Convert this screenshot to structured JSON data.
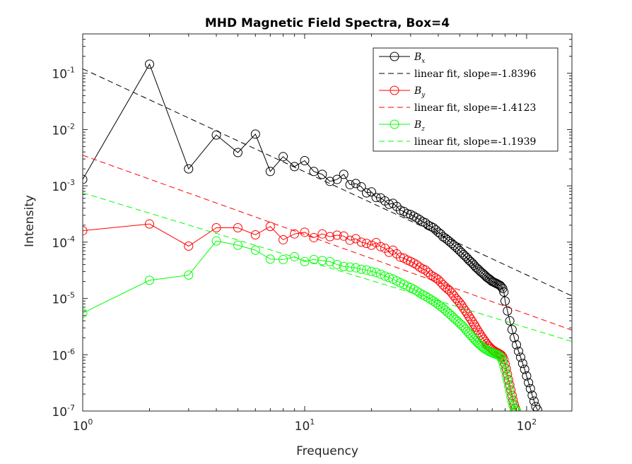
{
  "chart_data": {
    "type": "line",
    "title": "MHD Magnetic Field Spectra, Box=4",
    "xlabel": "Frequency",
    "ylabel": "Intensity",
    "xscale": "log",
    "yscale": "log",
    "xlim": [
      1,
      160
    ],
    "ylim": [
      1e-07,
      0.5
    ],
    "x_ticks": [
      {
        "base": "10",
        "exp": "0"
      },
      {
        "base": "10",
        "exp": "1"
      },
      {
        "base": "10",
        "exp": "2"
      }
    ],
    "y_ticks": [
      {
        "base": "10",
        "exp": "-7"
      },
      {
        "base": "10",
        "exp": "-6"
      },
      {
        "base": "10",
        "exp": "-5"
      },
      {
        "base": "10",
        "exp": "-4"
      },
      {
        "base": "10",
        "exp": "-3"
      },
      {
        "base": "10",
        "exp": "-2"
      },
      {
        "base": "10",
        "exp": "-1"
      }
    ],
    "grid": false,
    "legend_position": "top-right",
    "series": [
      {
        "name": "Bx",
        "legend_main": "B",
        "legend_sub": "x",
        "color": "#000000",
        "marker": "circle",
        "x": [
          1,
          2,
          3,
          4,
          5,
          6,
          7,
          8,
          9,
          10,
          11,
          12,
          13,
          14,
          15,
          16,
          17,
          18,
          19,
          20,
          21,
          22,
          23,
          24,
          25,
          26,
          27,
          28,
          29,
          30,
          31,
          32,
          33,
          34,
          35,
          36,
          37,
          38,
          39,
          40,
          41,
          42,
          43,
          44,
          45,
          46,
          47,
          48,
          49,
          50,
          51,
          52,
          53,
          54,
          55,
          56,
          57,
          58,
          59,
          60,
          61,
          62,
          63,
          64,
          65,
          66,
          67,
          68,
          69,
          70,
          71,
          72,
          73,
          74,
          75,
          76,
          77,
          78,
          79,
          80,
          82,
          84,
          86,
          88,
          90,
          92,
          94,
          96,
          98,
          100,
          102,
          104,
          106,
          108,
          110,
          112
        ],
        "y": [
          0.0013,
          0.145,
          0.002,
          0.008,
          0.0039,
          0.0083,
          0.0018,
          0.0033,
          0.0022,
          0.0028,
          0.0018,
          0.0016,
          0.0012,
          0.0013,
          0.0016,
          0.00105,
          0.0011,
          0.00096,
          0.00075,
          0.00078,
          0.00062,
          0.00061,
          0.00054,
          0.00047,
          0.00049,
          0.00043,
          0.00037,
          0.00035,
          0.00032,
          0.00031,
          0.00029,
          0.00027,
          0.00025,
          0.00023,
          0.00022,
          0.0002,
          0.00019,
          0.00018,
          0.000165,
          0.00015,
          0.00014,
          0.000125,
          0.000118,
          0.00011,
          0.000102,
          9.5e-05,
          8.8e-05,
          8.2e-05,
          7.6e-05,
          7e-05,
          6.5e-05,
          6e-05,
          5.6e-05,
          5.2e-05,
          4.8e-05,
          4.5e-05,
          4.2e-05,
          3.9e-05,
          3.6e-05,
          3.4e-05,
          3.2e-05,
          3e-05,
          2.85e-05,
          2.7e-05,
          2.55e-05,
          2.4e-05,
          2.3e-05,
          2.2e-05,
          2.1e-05,
          2e-05,
          1.95e-05,
          1.9e-05,
          1.85e-05,
          1.8e-05,
          1.75e-05,
          1.7e-05,
          1.6e-05,
          1.5e-05,
          1.3e-05,
          9e-06,
          6e-06,
          4e-06,
          2.8e-06,
          2e-06,
          1.5e-06,
          1.15e-06,
          9e-07,
          7e-07,
          5.5e-07,
          4.2e-07,
          3.2e-07,
          2.5e-07,
          1.9e-07,
          1.5e-07,
          1.2e-07,
          1.05e-07
        ]
      },
      {
        "name": "linear fit, slope=-1.8396",
        "legend_main": "linear fit, slope=-1.8396",
        "color": "#000000",
        "dash": true,
        "x": [
          1,
          160
        ],
        "y": [
          0.12,
          1.11e-05
        ]
      },
      {
        "name": "By",
        "legend_main": "B",
        "legend_sub": "y",
        "color": "#ff0000",
        "marker": "circle",
        "x": [
          1,
          2,
          3,
          4,
          5,
          6,
          7,
          8,
          9,
          10,
          11,
          12,
          13,
          14,
          15,
          16,
          17,
          18,
          19,
          20,
          21,
          22,
          23,
          24,
          25,
          26,
          27,
          28,
          29,
          30,
          31,
          32,
          33,
          34,
          35,
          36,
          37,
          38,
          39,
          40,
          41,
          42,
          43,
          44,
          45,
          46,
          47,
          48,
          49,
          50,
          51,
          52,
          53,
          54,
          55,
          56,
          57,
          58,
          59,
          60,
          61,
          62,
          63,
          64,
          65,
          66,
          67,
          68,
          69,
          70,
          71,
          72,
          73,
          74,
          75,
          76,
          77,
          78,
          79,
          80,
          81,
          82,
          83,
          84,
          85,
          86,
          87,
          88,
          89,
          90
        ],
        "y": [
          0.00016,
          0.00021,
          8.5e-05,
          0.00018,
          0.00018,
          0.000135,
          0.00019,
          0.00011,
          0.00014,
          0.00015,
          0.00012,
          0.00014,
          0.000125,
          0.000133,
          0.000128,
          0.000108,
          0.000115,
          0.0001,
          9.5e-05,
          8.8e-05,
          9.8e-05,
          8.3e-05,
          7.8e-05,
          6.6e-05,
          7.2e-05,
          6.2e-05,
          5.4e-05,
          5.2e-05,
          4.8e-05,
          4.55e-05,
          4.25e-05,
          3.95e-05,
          3.6e-05,
          3.35e-05,
          3.2e-05,
          2.9e-05,
          2.6e-05,
          2.45e-05,
          2.3e-05,
          2.15e-05,
          1.95e-05,
          1.75e-05,
          1.6e-05,
          1.48e-05,
          1.38e-05,
          1.25e-05,
          1.12e-05,
          1e-05,
          9.2e-06,
          8.3e-06,
          7.5e-06,
          6.7e-06,
          6e-06,
          5.4e-06,
          4.8e-06,
          4.3e-06,
          3.85e-06,
          3.45e-06,
          3.1e-06,
          2.75e-06,
          2.48e-06,
          2.25e-06,
          2.05e-06,
          1.87e-06,
          1.72e-06,
          1.58e-06,
          1.47e-06,
          1.38e-06,
          1.3e-06,
          1.24e-06,
          1.19e-06,
          1.15e-06,
          1.11e-06,
          1.08e-06,
          1.05e-06,
          1.02e-06,
          9.8e-07,
          9.2e-07,
          8.2e-07,
          6.8e-07,
          5.6e-07,
          4.5e-07,
          3.6e-07,
          2.9e-07,
          2.35e-07,
          1.9e-07,
          1.55e-07,
          1.3e-07,
          1.12e-07,
          1e-07
        ]
      },
      {
        "name": "linear fit, slope=-1.4123",
        "legend_main": "linear fit, slope=-1.4123",
        "color": "#ff0000",
        "dash": true,
        "x": [
          1,
          160
        ],
        "y": [
          0.0035,
          2.73e-06
        ]
      },
      {
        "name": "Bz",
        "legend_main": "B",
        "legend_sub": "z",
        "color": "#00ff00",
        "marker": "circle",
        "x": [
          1,
          2,
          3,
          4,
          5,
          6,
          7,
          8,
          9,
          10,
          11,
          12,
          13,
          14,
          15,
          16,
          17,
          18,
          19,
          20,
          21,
          22,
          23,
          24,
          25,
          26,
          27,
          28,
          29,
          30,
          31,
          32,
          33,
          34,
          35,
          36,
          37,
          38,
          39,
          40,
          41,
          42,
          43,
          44,
          45,
          46,
          47,
          48,
          49,
          50,
          51,
          52,
          53,
          54,
          55,
          56,
          57,
          58,
          59,
          60,
          61,
          62,
          63,
          64,
          65,
          66,
          67,
          68,
          69,
          70,
          71,
          72,
          73,
          74,
          75,
          76,
          77,
          78,
          79,
          80,
          81,
          82,
          83,
          84,
          85,
          86,
          87,
          88,
          89,
          90
        ],
        "y": [
          5.5e-06,
          2.1e-05,
          2.6e-05,
          0.000105,
          8.8e-05,
          7.2e-05,
          5e-05,
          4.9e-05,
          5.5e-05,
          4.5e-05,
          4.9e-05,
          4.7e-05,
          4.5e-05,
          4e-05,
          3.7e-05,
          3.6e-05,
          3.5e-05,
          3.3e-05,
          3.2e-05,
          3e-05,
          2.9e-05,
          2.7e-05,
          2.5e-05,
          2.35e-05,
          2.2e-05,
          2.05e-05,
          1.9e-05,
          1.78e-05,
          1.65e-05,
          1.55e-05,
          1.45e-05,
          1.35e-05,
          1.25e-05,
          1.17e-05,
          1.1e-05,
          1.03e-05,
          9.6e-06,
          9e-06,
          8.4e-06,
          7.8e-06,
          7.2e-06,
          6.7e-06,
          6.2e-06,
          5.7e-06,
          5.3e-06,
          4.9e-06,
          4.5e-06,
          4.2e-06,
          3.9e-06,
          3.6e-06,
          3.35e-06,
          3.1e-06,
          2.85e-06,
          2.6e-06,
          2.4e-06,
          2.22e-06,
          2.05e-06,
          1.9e-06,
          1.77e-06,
          1.65e-06,
          1.55e-06,
          1.47e-06,
          1.39e-06,
          1.32e-06,
          1.27e-06,
          1.22e-06,
          1.18e-06,
          1.14e-06,
          1.11e-06,
          1.08e-06,
          1.06e-06,
          1.04e-06,
          1.02e-06,
          1e-06,
          9.7e-07,
          9.3e-07,
          8.6e-07,
          7.6e-07,
          6.4e-07,
          5.3e-07,
          4.3e-07,
          3.5e-07,
          2.8e-07,
          2.25e-07,
          1.8e-07,
          1.48e-07,
          1.25e-07,
          1.1e-07,
          1.02e-07,
          1e-07
        ]
      },
      {
        "name": "linear fit, slope=-1.1939",
        "legend_main": "linear fit, slope=-1.1939",
        "color": "#00ff00",
        "dash": true,
        "x": [
          1,
          160
        ],
        "y": [
          0.00075,
          1.72e-06
        ]
      }
    ]
  }
}
